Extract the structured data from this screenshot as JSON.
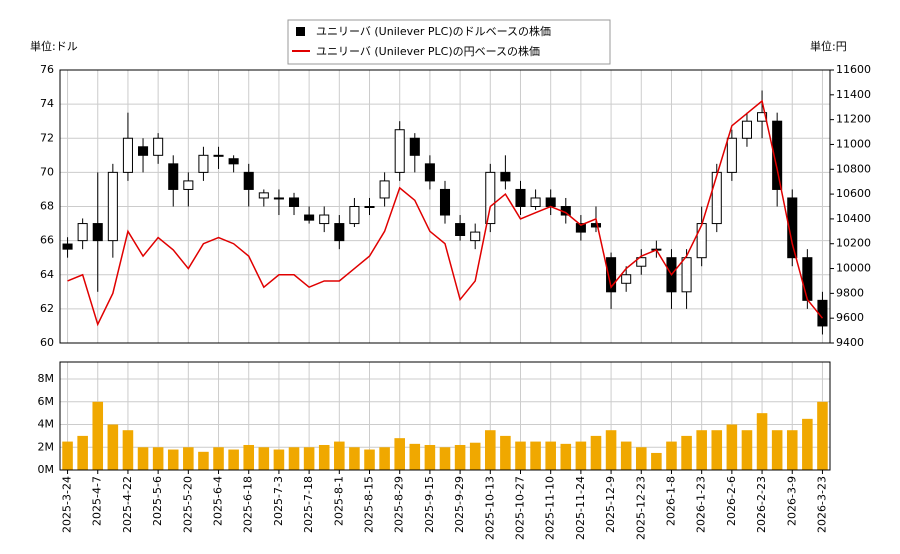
{
  "chart_data": [
    {
      "type": "candlestick",
      "y_label": "単位:ドル",
      "y2_label": "単位:円",
      "grid": true,
      "legend": "top",
      "series": [
        {
          "name": "ユニリーバ (Unilever PLC)のドルベースの株価",
          "type": "candlestick",
          "color": "#000000",
          "up_color": "#ffffff",
          "open": [
            65.8,
            66,
            67,
            66,
            70,
            71.5,
            71,
            70.5,
            69,
            70,
            71,
            70.8,
            70,
            68.5,
            68.5,
            68.5,
            67.5,
            67,
            67,
            67,
            68,
            68.5,
            70,
            72,
            70.5,
            69,
            67,
            66,
            67,
            70,
            69,
            68,
            68.5,
            68,
            67,
            67,
            65,
            63.5,
            64.5,
            65.5,
            65,
            63,
            65,
            67,
            70,
            72,
            73,
            73,
            68.5,
            65,
            62.5
          ],
          "high": [
            66.2,
            67.3,
            70,
            70.5,
            73.5,
            72,
            72.3,
            71,
            70,
            71.5,
            71.5,
            71,
            70.5,
            69,
            69,
            68.8,
            68,
            68,
            67.5,
            68.5,
            68.5,
            70,
            73,
            72.3,
            71,
            69.5,
            67.5,
            67,
            70.5,
            71,
            69.5,
            69,
            69,
            68.5,
            67.5,
            68,
            65.3,
            64.5,
            65.5,
            66,
            65.5,
            65.5,
            68,
            70.5,
            72.5,
            73.5,
            74.8,
            73.5,
            69,
            65.5,
            63
          ],
          "low": [
            65,
            65.5,
            63,
            65,
            69.5,
            70,
            70.5,
            68,
            68,
            69.5,
            70.2,
            70,
            68,
            68,
            67.5,
            67.5,
            67,
            66.5,
            65.5,
            66.8,
            67.5,
            68,
            69.5,
            70,
            69,
            67,
            66,
            65.5,
            66.5,
            69,
            67.5,
            67.8,
            67.5,
            67,
            66,
            66.5,
            62,
            63,
            64,
            65,
            62,
            62,
            64.5,
            66.5,
            69.5,
            71.5,
            72,
            68,
            64.5,
            62,
            60.5
          ],
          "close": [
            65.5,
            67,
            66,
            70,
            72,
            71,
            72,
            69,
            69.5,
            71,
            71,
            70.5,
            69,
            68.8,
            68.5,
            68,
            67.2,
            67.5,
            66,
            68,
            68,
            69.5,
            72.5,
            71,
            69.5,
            67.5,
            66.3,
            66.5,
            70,
            69.5,
            68,
            68.5,
            68,
            67.5,
            66.5,
            66.8,
            63,
            64,
            65,
            65.5,
            63,
            65,
            67,
            70,
            72,
            73,
            73.5,
            69,
            65,
            62.5,
            61
          ]
        },
        {
          "name": "ユニリーバ (Unilever PLC)の円ベースの株価",
          "color": "#e00000",
          "axis": "y2",
          "values": [
            9900,
            9950,
            9550,
            9800,
            10300,
            10100,
            10250,
            10150,
            10000,
            10200,
            10250,
            10200,
            10100,
            9850,
            9950,
            9950,
            9850,
            9900,
            9900,
            10000,
            10100,
            10300,
            10650,
            10550,
            10300,
            10200,
            9750,
            9900,
            10500,
            10600,
            10400,
            10450,
            10500,
            10450,
            10350,
            10400,
            9850,
            10000,
            10100,
            10150,
            9950,
            10100,
            10350,
            10750,
            11150,
            11250,
            11350,
            10800,
            10200,
            9750,
            9600
          ]
        }
      ],
      "ylim": [
        60,
        76
      ],
      "yticks": [
        60,
        62,
        64,
        66,
        68,
        70,
        72,
        74,
        76
      ],
      "y2lim": [
        9400,
        11600
      ],
      "y2ticks": [
        9400,
        9600,
        9800,
        10000,
        10200,
        10400,
        10600,
        10800,
        11000,
        11200,
        11400,
        11600
      ]
    },
    {
      "type": "bar",
      "color": "#f0a800",
      "grid": true,
      "x": [
        "2025-3-24",
        null,
        "2025-4-7",
        null,
        "2025-4-22",
        null,
        "2025-5-6",
        null,
        "2025-5-20",
        null,
        "2025-6-4",
        null,
        "2025-6-18",
        null,
        "2025-7-3",
        null,
        "2025-7-18",
        null,
        "2025-8-1",
        null,
        "2025-8-15",
        null,
        "2025-8-29",
        null,
        "2025-9-15",
        null,
        "2025-9-29",
        null,
        "2025-10-13",
        null,
        "2025-10-27",
        null,
        "2025-11-10",
        null,
        "2025-11-24",
        null,
        "2025-12-9",
        null,
        "2025-12-23",
        null,
        "2026-1-8",
        null,
        "2026-1-23",
        null,
        "2026-2-6",
        null,
        "2026-2-23",
        null,
        "2026-3-9",
        null,
        "2026-3-23"
      ],
      "values": [
        2.5,
        3,
        6,
        4,
        3.5,
        2,
        2,
        1.8,
        2,
        1.6,
        2,
        1.8,
        2.2,
        2,
        1.8,
        2,
        2,
        2.2,
        2.5,
        2,
        1.8,
        2,
        2.8,
        2.3,
        2.2,
        2,
        2.2,
        2.4,
        3.5,
        3,
        2.5,
        2.5,
        2.5,
        2.3,
        2.5,
        3,
        3.5,
        2.5,
        2,
        1.5,
        2.5,
        3,
        3.5,
        3.5,
        4,
        3.5,
        5,
        3.5,
        3.5,
        4.5,
        6
      ],
      "ylim": [
        0,
        9.5
      ],
      "yticks": [
        {
          "value": 0,
          "label": "0M"
        },
        {
          "value": 2,
          "label": "2M"
        },
        {
          "value": 4,
          "label": "4M"
        },
        {
          "value": 6,
          "label": "6M"
        },
        {
          "value": 8,
          "label": "8M"
        }
      ]
    }
  ]
}
